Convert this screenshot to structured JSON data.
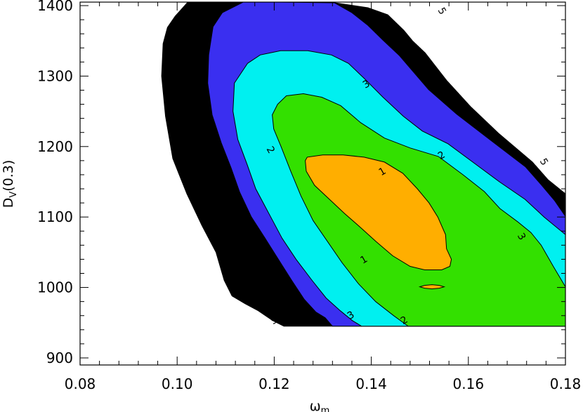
{
  "chart_data": {
    "type": "contour",
    "xlabel": "ω",
    "xlabel_sub": "m",
    "ylabel": "D",
    "ylabel_sub": "V",
    "ylabel_suffix": "(0.3)",
    "xlim": [
      0.08,
      0.18
    ],
    "ylim": [
      890,
      1405
    ],
    "x_ticks": [
      0.08,
      0.1,
      0.12,
      0.14,
      0.16,
      0.18
    ],
    "x_tick_labels": [
      "0.08",
      "0.10",
      "0.12",
      "0.14",
      "0.16",
      "0.18"
    ],
    "y_ticks": [
      900,
      1000,
      1100,
      1200,
      1300,
      1400
    ],
    "y_tick_labels": [
      "900",
      "1000",
      "1100",
      "1200",
      "1300",
      "1400"
    ],
    "grid": false,
    "colors": {
      "level_5": "#000000",
      "level_4": "#3a2ff0",
      "level_3": "#00f0f0",
      "level_2": "#33e000",
      "level_1": "#ffae00"
    },
    "regions": [
      {
        "level": "5",
        "color_key": "level_5",
        "points": [
          [
            0.1022,
            1405
          ],
          [
            0.1175,
            1405
          ],
          [
            0.1325,
            1404
          ],
          [
            0.1393,
            1397
          ],
          [
            0.1434,
            1387
          ],
          [
            0.1467,
            1365
          ],
          [
            0.1485,
            1350
          ],
          [
            0.1511,
            1333
          ],
          [
            0.1555,
            1294
          ],
          [
            0.1604,
            1257
          ],
          [
            0.1662,
            1219
          ],
          [
            0.1732,
            1178
          ],
          [
            0.1764,
            1153
          ],
          [
            0.18,
            1133
          ],
          [
            0.18,
            945
          ],
          [
            0.122,
            945
          ],
          [
            0.1197,
            953
          ],
          [
            0.1167,
            967
          ],
          [
            0.114,
            977
          ],
          [
            0.1113,
            988
          ],
          [
            0.1097,
            1010
          ],
          [
            0.108,
            1050
          ],
          [
            0.1051,
            1088
          ],
          [
            0.102,
            1133
          ],
          [
            0.0991,
            1183
          ],
          [
            0.0976,
            1243
          ],
          [
            0.0968,
            1300
          ],
          [
            0.0971,
            1346
          ],
          [
            0.098,
            1369
          ],
          [
            0.0996,
            1385
          ]
        ]
      },
      {
        "level": "4",
        "color_key": "level_4",
        "points": [
          [
            0.1136,
            1405
          ],
          [
            0.1213,
            1405
          ],
          [
            0.1324,
            1404
          ],
          [
            0.136,
            1390
          ],
          [
            0.1393,
            1372
          ],
          [
            0.1424,
            1351
          ],
          [
            0.1458,
            1329
          ],
          [
            0.1518,
            1281
          ],
          [
            0.1576,
            1246
          ],
          [
            0.1646,
            1209
          ],
          [
            0.1718,
            1171
          ],
          [
            0.175,
            1146
          ],
          [
            0.1778,
            1123
          ],
          [
            0.18,
            1101
          ],
          [
            0.18,
            945
          ],
          [
            0.132,
            945
          ],
          [
            0.1305,
            957
          ],
          [
            0.1286,
            965
          ],
          [
            0.1262,
            983
          ],
          [
            0.1236,
            1010
          ],
          [
            0.1213,
            1035
          ],
          [
            0.1181,
            1070
          ],
          [
            0.1153,
            1100
          ],
          [
            0.1129,
            1135
          ],
          [
            0.1111,
            1170
          ],
          [
            0.1091,
            1205
          ],
          [
            0.1072,
            1245
          ],
          [
            0.1063,
            1290
          ],
          [
            0.1065,
            1330
          ],
          [
            0.1074,
            1370
          ],
          [
            0.1093,
            1390
          ]
        ]
      },
      {
        "level": "3",
        "color_key": "level_3",
        "points": [
          [
            0.1145,
            1318
          ],
          [
            0.1171,
            1330
          ],
          [
            0.1213,
            1336
          ],
          [
            0.1269,
            1336
          ],
          [
            0.1318,
            1330
          ],
          [
            0.1353,
            1318
          ],
          [
            0.1385,
            1297
          ],
          [
            0.1424,
            1270
          ],
          [
            0.1466,
            1243
          ],
          [
            0.1505,
            1222
          ],
          [
            0.1558,
            1204
          ],
          [
            0.1609,
            1178
          ],
          [
            0.1664,
            1150
          ],
          [
            0.1717,
            1125
          ],
          [
            0.1756,
            1100
          ],
          [
            0.18,
            1075
          ],
          [
            0.18,
            945
          ],
          [
            0.138,
            945
          ],
          [
            0.1361,
            953
          ],
          [
            0.1336,
            967
          ],
          [
            0.1307,
            985
          ],
          [
            0.1278,
            1010
          ],
          [
            0.1245,
            1040
          ],
          [
            0.1216,
            1070
          ],
          [
            0.1189,
            1105
          ],
          [
            0.1162,
            1140
          ],
          [
            0.1144,
            1175
          ],
          [
            0.1125,
            1210
          ],
          [
            0.1115,
            1250
          ],
          [
            0.1118,
            1290
          ]
        ]
      },
      {
        "level": "2",
        "color_key": "level_2",
        "points": [
          [
            0.1196,
            1245
          ],
          [
            0.1207,
            1260
          ],
          [
            0.1225,
            1272
          ],
          [
            0.126,
            1275
          ],
          [
            0.1298,
            1270
          ],
          [
            0.1337,
            1258
          ],
          [
            0.1378,
            1234
          ],
          [
            0.1427,
            1212
          ],
          [
            0.148,
            1198
          ],
          [
            0.1538,
            1186
          ],
          [
            0.1589,
            1160
          ],
          [
            0.1633,
            1136
          ],
          [
            0.1665,
            1112
          ],
          [
            0.1702,
            1093
          ],
          [
            0.1729,
            1078
          ],
          [
            0.175,
            1060
          ],
          [
            0.1775,
            1030
          ],
          [
            0.18,
            1001
          ],
          [
            0.18,
            945
          ],
          [
            0.1476,
            945
          ],
          [
            0.1446,
            960
          ],
          [
            0.1409,
            980
          ],
          [
            0.1374,
            1005
          ],
          [
            0.134,
            1035
          ],
          [
            0.131,
            1065
          ],
          [
            0.128,
            1095
          ],
          [
            0.1255,
            1130
          ],
          [
            0.1234,
            1165
          ],
          [
            0.1214,
            1200
          ],
          [
            0.1199,
            1225
          ]
        ]
      },
      {
        "level": "1",
        "color_key": "level_1",
        "points": [
          [
            0.1264,
            1180
          ],
          [
            0.1268,
            1185
          ],
          [
            0.13,
            1188
          ],
          [
            0.1342,
            1188
          ],
          [
            0.1385,
            1185
          ],
          [
            0.1427,
            1178
          ],
          [
            0.1465,
            1162
          ],
          [
            0.1495,
            1140
          ],
          [
            0.1519,
            1120
          ],
          [
            0.1537,
            1100
          ],
          [
            0.1553,
            1075
          ],
          [
            0.1555,
            1055
          ],
          [
            0.1565,
            1040
          ],
          [
            0.1562,
            1030
          ],
          [
            0.1545,
            1025
          ],
          [
            0.151,
            1025
          ],
          [
            0.148,
            1030
          ],
          [
            0.1444,
            1045
          ],
          [
            0.141,
            1065
          ],
          [
            0.1378,
            1085
          ],
          [
            0.1345,
            1105
          ],
          [
            0.1314,
            1125
          ],
          [
            0.1283,
            1145
          ],
          [
            0.1266,
            1165
          ]
        ]
      },
      {
        "level": "1",
        "color_key": "level_1",
        "points": [
          [
            0.15,
            1001
          ],
          [
            0.151,
            1003
          ],
          [
            0.1525,
            1004
          ],
          [
            0.154,
            1003
          ],
          [
            0.155,
            1001
          ],
          [
            0.154,
            999
          ],
          [
            0.1525,
            998
          ],
          [
            0.151,
            999
          ]
        ]
      }
    ],
    "contour_labels": [
      {
        "text": "5",
        "x": 0.1545,
        "y": 1392,
        "angle": 60
      },
      {
        "text": "5",
        "x": 0.1755,
        "y": 1178,
        "angle": 60
      },
      {
        "text": "5",
        "x": 0.0998,
        "y": 1210,
        "angle": 60
      },
      {
        "text": "5",
        "x": 0.12,
        "y": 953,
        "angle": -30
      },
      {
        "text": "4",
        "x": 0.1035,
        "y": 1207,
        "angle": 60
      },
      {
        "text": "4",
        "x": 0.1285,
        "y": 955,
        "angle": -30
      },
      {
        "text": "3",
        "x": 0.139,
        "y": 1288,
        "angle": -30
      },
      {
        "text": "3",
        "x": 0.1073,
        "y": 1187,
        "angle": 60
      },
      {
        "text": "3",
        "x": 0.1709,
        "y": 1072,
        "angle": 60
      },
      {
        "text": "3",
        "x": 0.1358,
        "y": 960,
        "angle": -30
      },
      {
        "text": "2",
        "x": 0.1192,
        "y": 1195,
        "angle": 60
      },
      {
        "text": "2",
        "x": 0.1545,
        "y": 1187,
        "angle": -30
      },
      {
        "text": "2",
        "x": 0.1468,
        "y": 953,
        "angle": -30
      },
      {
        "text": "1",
        "x": 0.1423,
        "y": 1164,
        "angle": -30
      },
      {
        "text": "1",
        "x": 0.1385,
        "y": 1039,
        "angle": -30
      }
    ]
  }
}
